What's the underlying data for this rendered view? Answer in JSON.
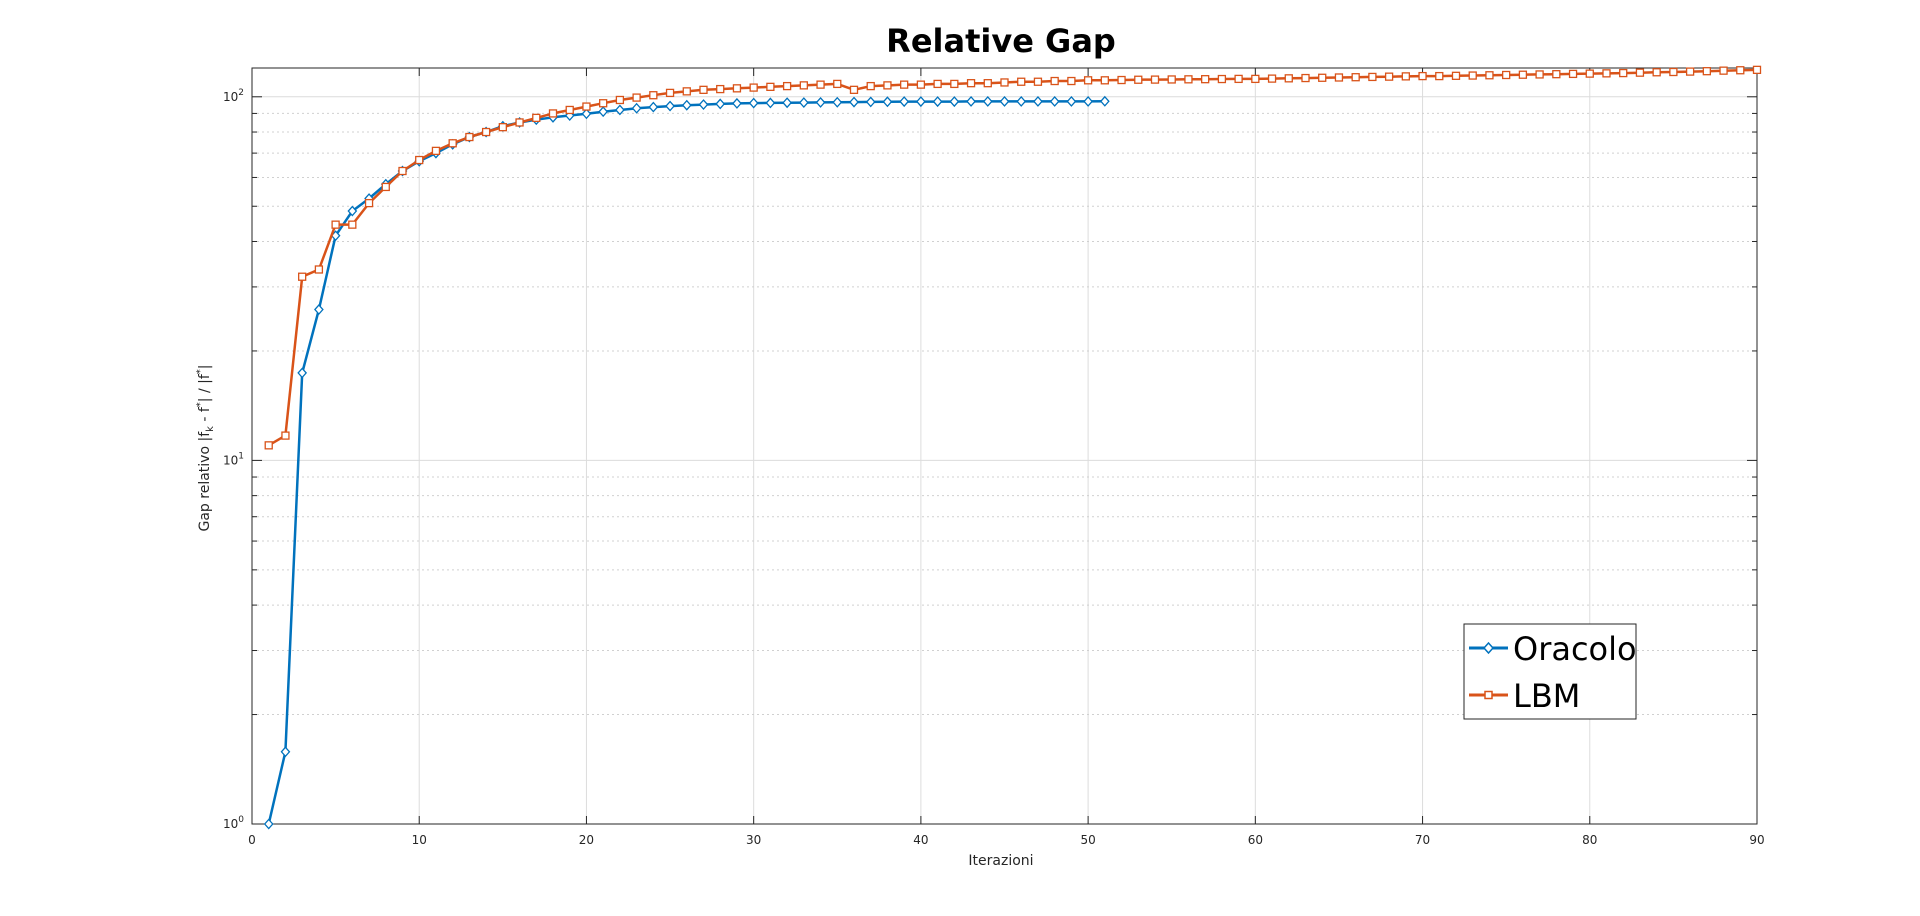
{
  "chart_data": {
    "type": "line",
    "title": "Relative Gap",
    "xlabel": "Iterazioni",
    "ylabel": "Gap relativo |f_k - f*| / |f*|",
    "ylabel_parts": {
      "prefix": "Gap relativo |f",
      "sub": "k",
      "mid1": " - f",
      "sup1": "*",
      "mid2": "| / |f",
      "sup2": "*",
      "suffix": "|"
    },
    "xlim": [
      0,
      90
    ],
    "ylim": [
      1,
      120
    ],
    "yscale": "log",
    "grid": true,
    "legend_position": "bottom-right",
    "x_ticks": [
      "0",
      "10",
      "20",
      "30",
      "40",
      "50",
      "60",
      "70",
      "80",
      "90"
    ],
    "y_ticks": [
      {
        "base": "10",
        "exp": "0",
        "value": 1
      },
      {
        "base": "10",
        "exp": "1",
        "value": 10
      },
      {
        "base": "10",
        "exp": "2",
        "value": 100
      }
    ],
    "series": [
      {
        "name": "Oracolo",
        "color": "#0072BD",
        "marker": "diamond",
        "x": [
          1,
          2,
          3,
          4,
          5,
          6,
          7,
          8,
          9,
          10,
          11,
          12,
          13,
          14,
          15,
          16,
          17,
          18,
          19,
          20,
          21,
          22,
          23,
          24,
          25,
          26,
          27,
          28,
          29,
          30,
          31,
          32,
          33,
          34,
          35,
          36,
          37,
          38,
          39,
          40,
          41,
          42,
          43,
          44,
          45,
          46,
          47,
          48,
          49,
          50,
          51
        ],
        "values": [
          1.0,
          1.58,
          17.4,
          26.0,
          41.5,
          48.5,
          52.5,
          57.5,
          62.5,
          66.5,
          70,
          74,
          77.5,
          80,
          83,
          85,
          86.5,
          87.8,
          88.8,
          89.8,
          91,
          92,
          93,
          93.7,
          94.3,
          94.8,
          95.2,
          95.6,
          95.9,
          96.1,
          96.2,
          96.3,
          96.4,
          96.5,
          96.6,
          96.7,
          96.8,
          96.9,
          97.0,
          97.0,
          97.0,
          97.0,
          97.1,
          97.1,
          97.1,
          97.1,
          97.1,
          97.1,
          97.1,
          97.1,
          97.2
        ]
      },
      {
        "name": "LBM",
        "color": "#D95319",
        "marker": "square",
        "x": [
          1,
          2,
          3,
          4,
          5,
          6,
          7,
          8,
          9,
          10,
          11,
          12,
          13,
          14,
          15,
          16,
          17,
          18,
          19,
          20,
          21,
          22,
          23,
          24,
          25,
          26,
          27,
          28,
          29,
          30,
          31,
          32,
          33,
          34,
          35,
          36,
          37,
          38,
          39,
          40,
          41,
          42,
          43,
          44,
          45,
          46,
          47,
          48,
          49,
          50,
          51,
          52,
          53,
          54,
          55,
          56,
          57,
          58,
          59,
          60,
          61,
          62,
          63,
          64,
          65,
          66,
          67,
          68,
          69,
          70,
          71,
          72,
          73,
          74,
          75,
          76,
          77,
          78,
          79,
          80,
          81,
          82,
          83,
          84,
          85,
          86,
          87,
          88,
          89,
          90
        ],
        "values": [
          11.0,
          11.7,
          32.0,
          33.5,
          44.5,
          44.5,
          51.0,
          56.5,
          62.5,
          67.0,
          71.0,
          74.5,
          77.5,
          80.0,
          82.5,
          85.0,
          87.5,
          90.0,
          92.0,
          94.0,
          96.0,
          98.0,
          99.5,
          101.0,
          102.5,
          103.5,
          104.5,
          105.0,
          105.5,
          106.0,
          106.5,
          107.0,
          107.5,
          108.0,
          108.5,
          104.5,
          107.0,
          107.5,
          108.0,
          108.0,
          108.5,
          108.5,
          109.0,
          109.0,
          109.5,
          110.0,
          110.0,
          110.5,
          110.5,
          111.0,
          111.0,
          111.2,
          111.4,
          111.5,
          111.6,
          111.7,
          111.8,
          111.9,
          112.0,
          112.0,
          112.2,
          112.4,
          112.6,
          112.8,
          113.0,
          113.2,
          113.4,
          113.6,
          113.8,
          114.0,
          114.0,
          114.2,
          114.4,
          114.6,
          114.8,
          115.0,
          115.2,
          115.4,
          115.6,
          115.8,
          116.0,
          116.2,
          116.5,
          116.8,
          117.0,
          117.3,
          117.6,
          118.0,
          118.3,
          118.6
        ]
      }
    ]
  }
}
